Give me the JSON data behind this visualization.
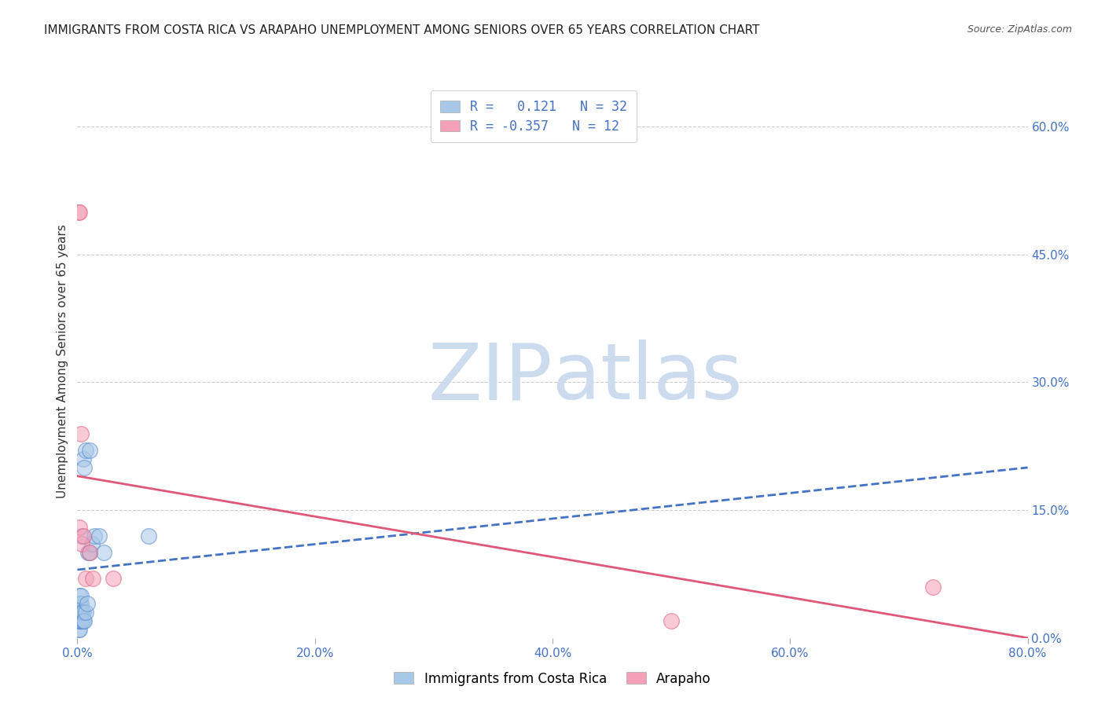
{
  "title": "IMMIGRANTS FROM COSTA RICA VS ARAPAHO UNEMPLOYMENT AMONG SENIORS OVER 65 YEARS CORRELATION CHART",
  "source": "Source: ZipAtlas.com",
  "ylabel": "Unemployment Among Seniors over 65 years",
  "watermark_zip": "ZIP",
  "watermark_atlas": "atlas",
  "legend_entries": [
    {
      "label": "Immigrants from Costa Rica",
      "color": "#a8c8e8",
      "edge_color": "#5588cc",
      "R": 0.121,
      "N": 32
    },
    {
      "label": "Arapaho",
      "color": "#f4a0b8",
      "edge_color": "#e06080",
      "R": -0.357,
      "N": 12
    }
  ],
  "blue_scatter_x": [
    0.001,
    0.001,
    0.001,
    0.001,
    0.002,
    0.002,
    0.002,
    0.002,
    0.002,
    0.003,
    0.003,
    0.003,
    0.003,
    0.004,
    0.004,
    0.004,
    0.005,
    0.005,
    0.005,
    0.006,
    0.006,
    0.007,
    0.007,
    0.008,
    0.009,
    0.01,
    0.01,
    0.012,
    0.014,
    0.018,
    0.022,
    0.06
  ],
  "blue_scatter_y": [
    0.01,
    0.02,
    0.02,
    0.03,
    0.01,
    0.02,
    0.03,
    0.04,
    0.05,
    0.02,
    0.03,
    0.04,
    0.05,
    0.02,
    0.03,
    0.12,
    0.02,
    0.03,
    0.21,
    0.02,
    0.2,
    0.03,
    0.22,
    0.04,
    0.1,
    0.1,
    0.22,
    0.11,
    0.12,
    0.12,
    0.1,
    0.12
  ],
  "pink_scatter_x": [
    0.001,
    0.002,
    0.002,
    0.003,
    0.004,
    0.005,
    0.007,
    0.01,
    0.013,
    0.03,
    0.5,
    0.72
  ],
  "pink_scatter_y": [
    0.5,
    0.5,
    0.13,
    0.24,
    0.11,
    0.12,
    0.07,
    0.1,
    0.07,
    0.07,
    0.02,
    0.06
  ],
  "blue_line_x": [
    0.0,
    0.8
  ],
  "blue_line_y": [
    0.08,
    0.2
  ],
  "pink_line_x": [
    0.0,
    0.8
  ],
  "pink_line_y": [
    0.19,
    0.0
  ],
  "xlim": [
    0.0,
    0.8
  ],
  "ylim": [
    0.0,
    0.65
  ],
  "right_yticks": [
    0.0,
    0.15,
    0.3,
    0.45,
    0.6
  ],
  "right_yticklabels": [
    "0.0%",
    "15.0%",
    "30.0%",
    "45.0%",
    "60.0%"
  ],
  "xticks": [
    0.0,
    0.2,
    0.4,
    0.6,
    0.8
  ],
  "xticklabels": [
    "0.0%",
    "20.0%",
    "40.0%",
    "60.0%",
    "80.0%"
  ],
  "tick_color": "#4472c4",
  "blue_line_color": "#4472c4",
  "pink_line_color": "#e05878",
  "title_fontsize": 11,
  "source_fontsize": 9,
  "watermark_color": "#ccdcee",
  "watermark_fontsize": 72,
  "axis_label_color": "#333333",
  "grid_color": "#cccccc"
}
